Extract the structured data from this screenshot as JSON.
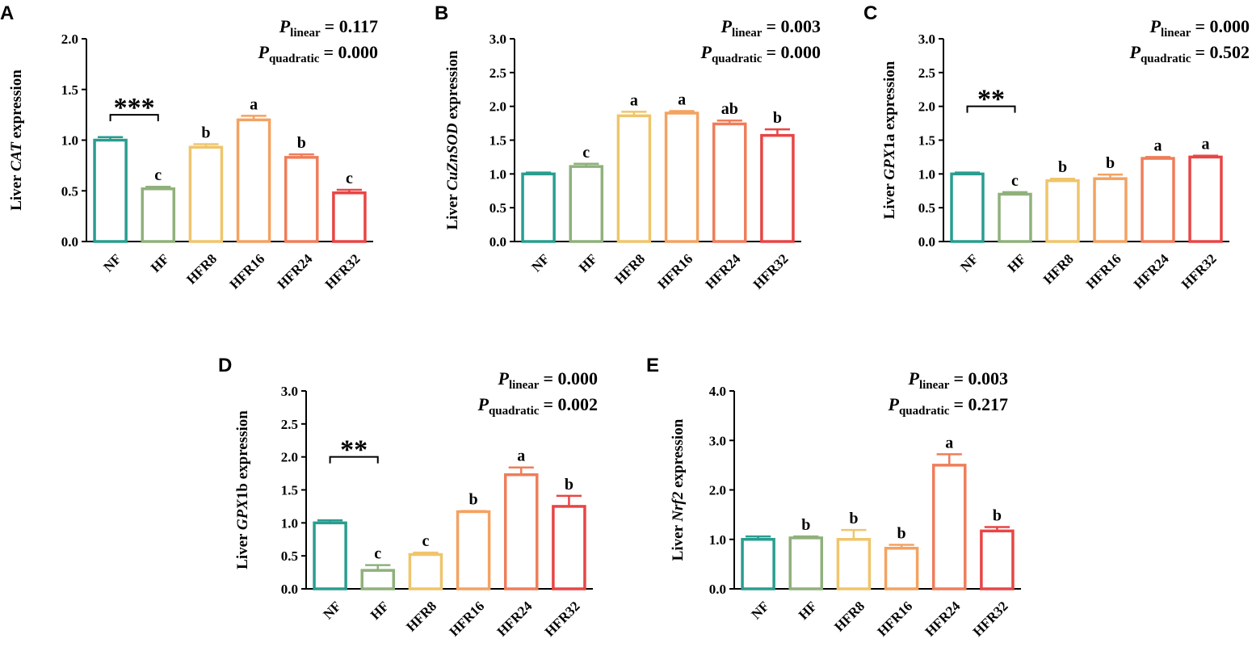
{
  "figure": {
    "colors": {
      "NF": "#2a9d8f",
      "HF": "#8fb17c",
      "HFR8": "#efc56c",
      "HFR16": "#f4a261",
      "HFR24": "#ef7d5a",
      "HFR32": "#e84545"
    }
  },
  "chart_data": [
    {
      "type": "bar",
      "panel": "A",
      "ylabel_prefix": "Liver ",
      "ylabel_gene": "CAT",
      "ylabel_suffix": " expression",
      "ylim": [
        0,
        2.0
      ],
      "yticks": [
        "0.0",
        "0.5",
        "1.0",
        "1.5",
        "2.0"
      ],
      "categories": [
        "NF",
        "HF",
        "HFR8",
        "HFR16",
        "HFR24",
        "HFR32"
      ],
      "values": [
        1.0,
        0.52,
        0.93,
        1.2,
        0.83,
        0.48
      ],
      "errors": [
        0.03,
        0.02,
        0.03,
        0.04,
        0.03,
        0.03
      ],
      "letters": [
        "",
        "c",
        "b",
        "a",
        "b",
        "c"
      ],
      "bracket": {
        "from": 0,
        "to": 1,
        "y": 1.25,
        "label": "***"
      },
      "p_symbol": "P",
      "p_linear_sub": "linear",
      "p_linear": "= 0.117",
      "p_quadratic_sub": "quadratic",
      "p_quadratic": "= 0.000"
    },
    {
      "type": "bar",
      "panel": "B",
      "ylabel_prefix": "Liver ",
      "ylabel_gene": "CuZnSOD",
      "ylabel_suffix": " expression",
      "ylim": [
        0,
        3.0
      ],
      "yticks": [
        "0.0",
        "0.5",
        "1.0",
        "1.5",
        "2.0",
        "2.5",
        "3.0"
      ],
      "categories": [
        "NF",
        "HF",
        "HFR8",
        "HFR16",
        "HFR24",
        "HFR32"
      ],
      "values": [
        1.0,
        1.11,
        1.86,
        1.9,
        1.74,
        1.57
      ],
      "errors": [
        0.02,
        0.04,
        0.06,
        0.03,
        0.05,
        0.09
      ],
      "letters": [
        "",
        "c",
        "a",
        "a",
        "ab",
        "b"
      ],
      "bracket": null,
      "p_symbol": "P",
      "p_linear_sub": "linear",
      "p_linear": "= 0.003",
      "p_quadratic_sub": "quadratic",
      "p_quadratic": "= 0.000"
    },
    {
      "type": "bar",
      "panel": "C",
      "ylabel_prefix": "Liver ",
      "ylabel_gene": "GPX",
      "ylabel_suffix": "1a expression",
      "ylim": [
        0,
        3.0
      ],
      "yticks": [
        "0.0",
        "0.5",
        "1.0",
        "1.5",
        "2.0",
        "2.5",
        "3.0"
      ],
      "categories": [
        "NF",
        "HF",
        "HFR8",
        "HFR16",
        "HFR24",
        "HFR32"
      ],
      "values": [
        1.0,
        0.7,
        0.9,
        0.93,
        1.23,
        1.25
      ],
      "errors": [
        0.02,
        0.03,
        0.03,
        0.06,
        0.02,
        0.02
      ],
      "letters": [
        "",
        "c",
        "b",
        "b",
        "a",
        "a"
      ],
      "bracket": {
        "from": 0,
        "to": 1,
        "y": 2.0,
        "label": "**"
      },
      "p_symbol": "P",
      "p_linear_sub": "linear",
      "p_linear": "= 0.000",
      "p_quadratic_sub": "quadratic",
      "p_quadratic": "= 0.502"
    },
    {
      "type": "bar",
      "panel": "D",
      "ylabel_prefix": "Liver ",
      "ylabel_gene": "GPX",
      "ylabel_suffix": "1b expression",
      "ylim": [
        0,
        3.0
      ],
      "yticks": [
        "0.0",
        "0.5",
        "1.0",
        "1.5",
        "2.0",
        "2.5",
        "3.0"
      ],
      "categories": [
        "NF",
        "HF",
        "HFR8",
        "HFR16",
        "HFR24",
        "HFR32"
      ],
      "values": [
        1.0,
        0.28,
        0.52,
        1.17,
        1.73,
        1.25
      ],
      "errors": [
        0.04,
        0.08,
        0.03,
        0.01,
        0.11,
        0.16
      ],
      "letters": [
        "",
        "c",
        "c",
        "b",
        "a",
        "b"
      ],
      "bracket": {
        "from": 0,
        "to": 1,
        "y": 2.0,
        "label": "**"
      },
      "p_symbol": "P",
      "p_linear_sub": "linear",
      "p_linear": "= 0.000",
      "p_quadratic_sub": "quadratic",
      "p_quadratic": "= 0.002"
    },
    {
      "type": "bar",
      "panel": "E",
      "ylabel_prefix": "Liver ",
      "ylabel_gene": "Nrf2",
      "ylabel_suffix": " expression",
      "ylim": [
        0,
        4.0
      ],
      "yticks": [
        "0.0",
        "1.0",
        "2.0",
        "3.0",
        "4.0"
      ],
      "categories": [
        "NF",
        "HF",
        "HFR8",
        "HFR16",
        "HFR24",
        "HFR32"
      ],
      "values": [
        1.0,
        1.03,
        1.0,
        0.82,
        2.5,
        1.17
      ],
      "errors": [
        0.06,
        0.03,
        0.19,
        0.07,
        0.22,
        0.08
      ],
      "letters": [
        "",
        "b",
        "b",
        "b",
        "a",
        "b"
      ],
      "bracket": null,
      "p_symbol": "P",
      "p_linear_sub": "linear",
      "p_linear": "= 0.003",
      "p_quadratic_sub": "quadratic",
      "p_quadratic": "= 0.217"
    }
  ]
}
